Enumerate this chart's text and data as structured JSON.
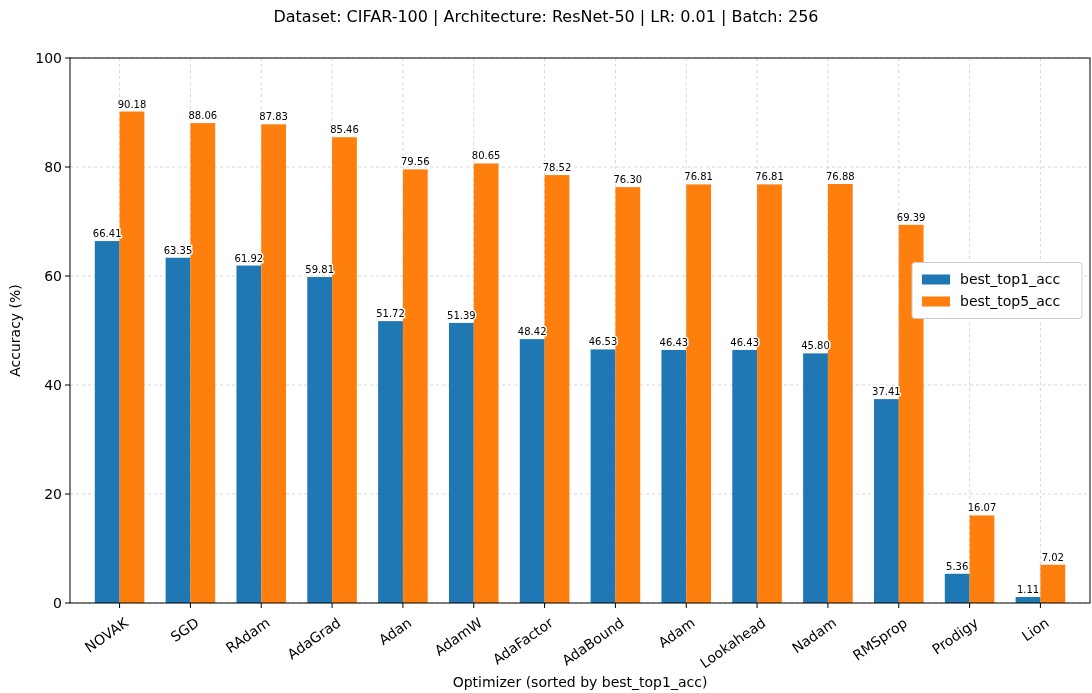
{
  "chart_data": {
    "type": "bar",
    "title": "Dataset: CIFAR-100 | Architecture: ResNet-50 | LR: 0.01 | Batch: 256",
    "xlabel": "Optimizer (sorted by best_top1_acc)",
    "ylabel": "Accuracy (%)",
    "categories": [
      "NOVAK",
      "SGD",
      "RAdam",
      "AdaGrad",
      "Adan",
      "AdamW",
      "AdaFactor",
      "AdaBound",
      "Adam",
      "Lookahead",
      "Nadam",
      "RMSprop",
      "Prodigy",
      "Lion"
    ],
    "series": [
      {
        "name": "best_top1_acc",
        "color": "#1f77b4",
        "values": [
          66.41,
          63.35,
          61.92,
          59.81,
          51.72,
          51.39,
          48.42,
          46.53,
          46.43,
          46.43,
          45.8,
          37.41,
          5.36,
          1.11
        ],
        "value_labels": [
          "66.41",
          "63.35",
          "61.92",
          "59.81",
          "51.72",
          "51.39",
          "48.42",
          "46.53",
          "46.43",
          "46.43",
          "45.80",
          "37.41",
          "5.36",
          "1.11"
        ]
      },
      {
        "name": "best_top5_acc",
        "color": "#ff7f0e",
        "values": [
          90.18,
          88.06,
          87.83,
          85.46,
          79.56,
          80.65,
          78.52,
          76.3,
          76.81,
          76.81,
          76.88,
          69.39,
          16.07,
          7.02
        ],
        "value_labels": [
          "90.18",
          "88.06",
          "87.83",
          "85.46",
          "79.56",
          "80.65",
          "78.52",
          "76.30",
          "76.81",
          "76.81",
          "76.88",
          "69.39",
          "16.07",
          "7.02"
        ]
      }
    ],
    "ylim": [
      0,
      100
    ],
    "yticks": [
      0,
      20,
      40,
      60,
      80,
      100
    ],
    "grid": true,
    "legend": "right"
  }
}
